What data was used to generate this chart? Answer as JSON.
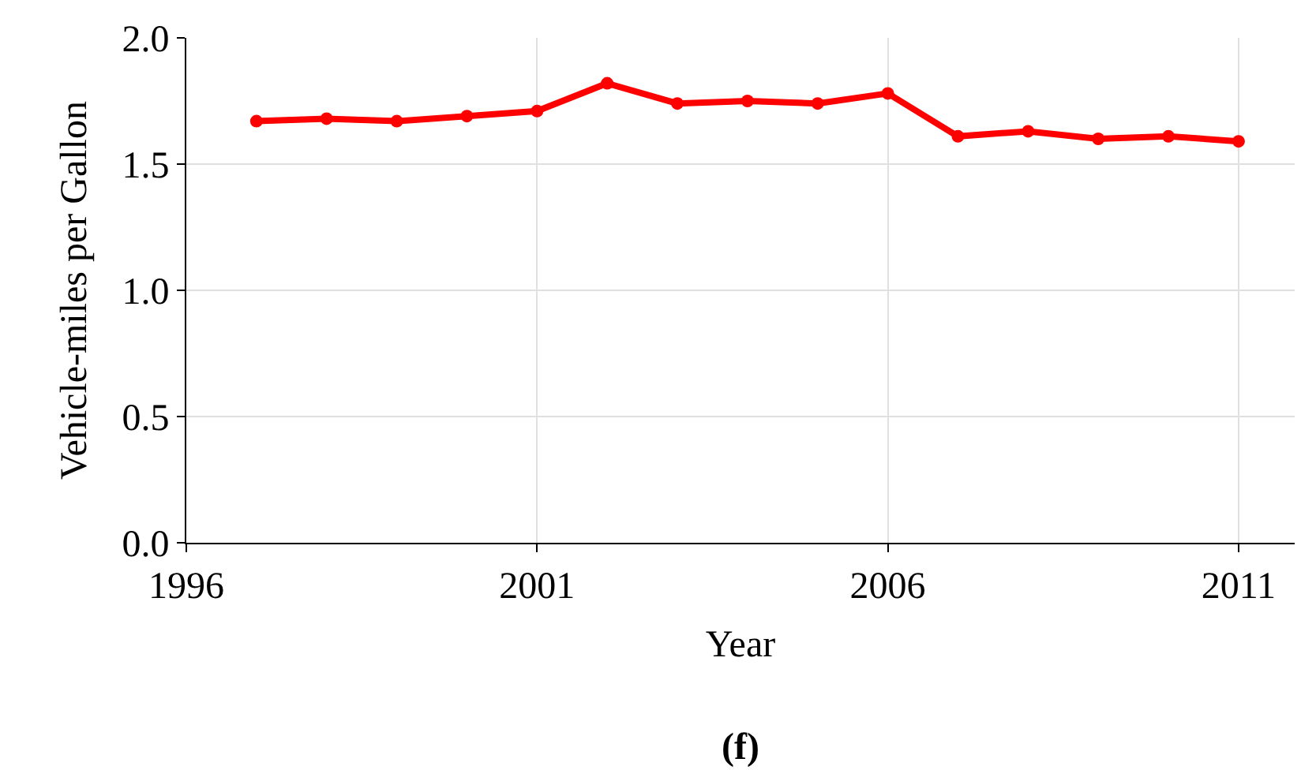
{
  "chart_data": {
    "type": "line",
    "xlabel": "Year",
    "ylabel": "Vehicle-miles per Gallon",
    "annotations": [
      "(f)"
    ],
    "x": [
      1997,
      1998,
      1999,
      2000,
      2001,
      2002,
      2003,
      2004,
      2005,
      2006,
      2007,
      2008,
      2009,
      2010,
      2011
    ],
    "series": [
      {
        "color": "#ff0000",
        "values": [
          1.67,
          1.68,
          1.67,
          1.69,
          1.71,
          1.82,
          1.74,
          1.75,
          1.74,
          1.78,
          1.61,
          1.63,
          1.6,
          1.61,
          1.59
        ]
      }
    ],
    "xlim": [
      1996,
      2011.8
    ],
    "xticks": [
      1996,
      2001,
      2006,
      2011
    ],
    "ylim": [
      0,
      2
    ],
    "yticks": [
      {
        "value": 0,
        "label": "0.0"
      },
      {
        "value": 0.5,
        "label": "0.5"
      },
      {
        "value": 1,
        "label": "1.0"
      },
      {
        "value": 1.5,
        "label": "1.5"
      },
      {
        "value": 2,
        "label": "2.0"
      }
    ],
    "grid": true,
    "marker": "circle",
    "line_style": "solid"
  }
}
